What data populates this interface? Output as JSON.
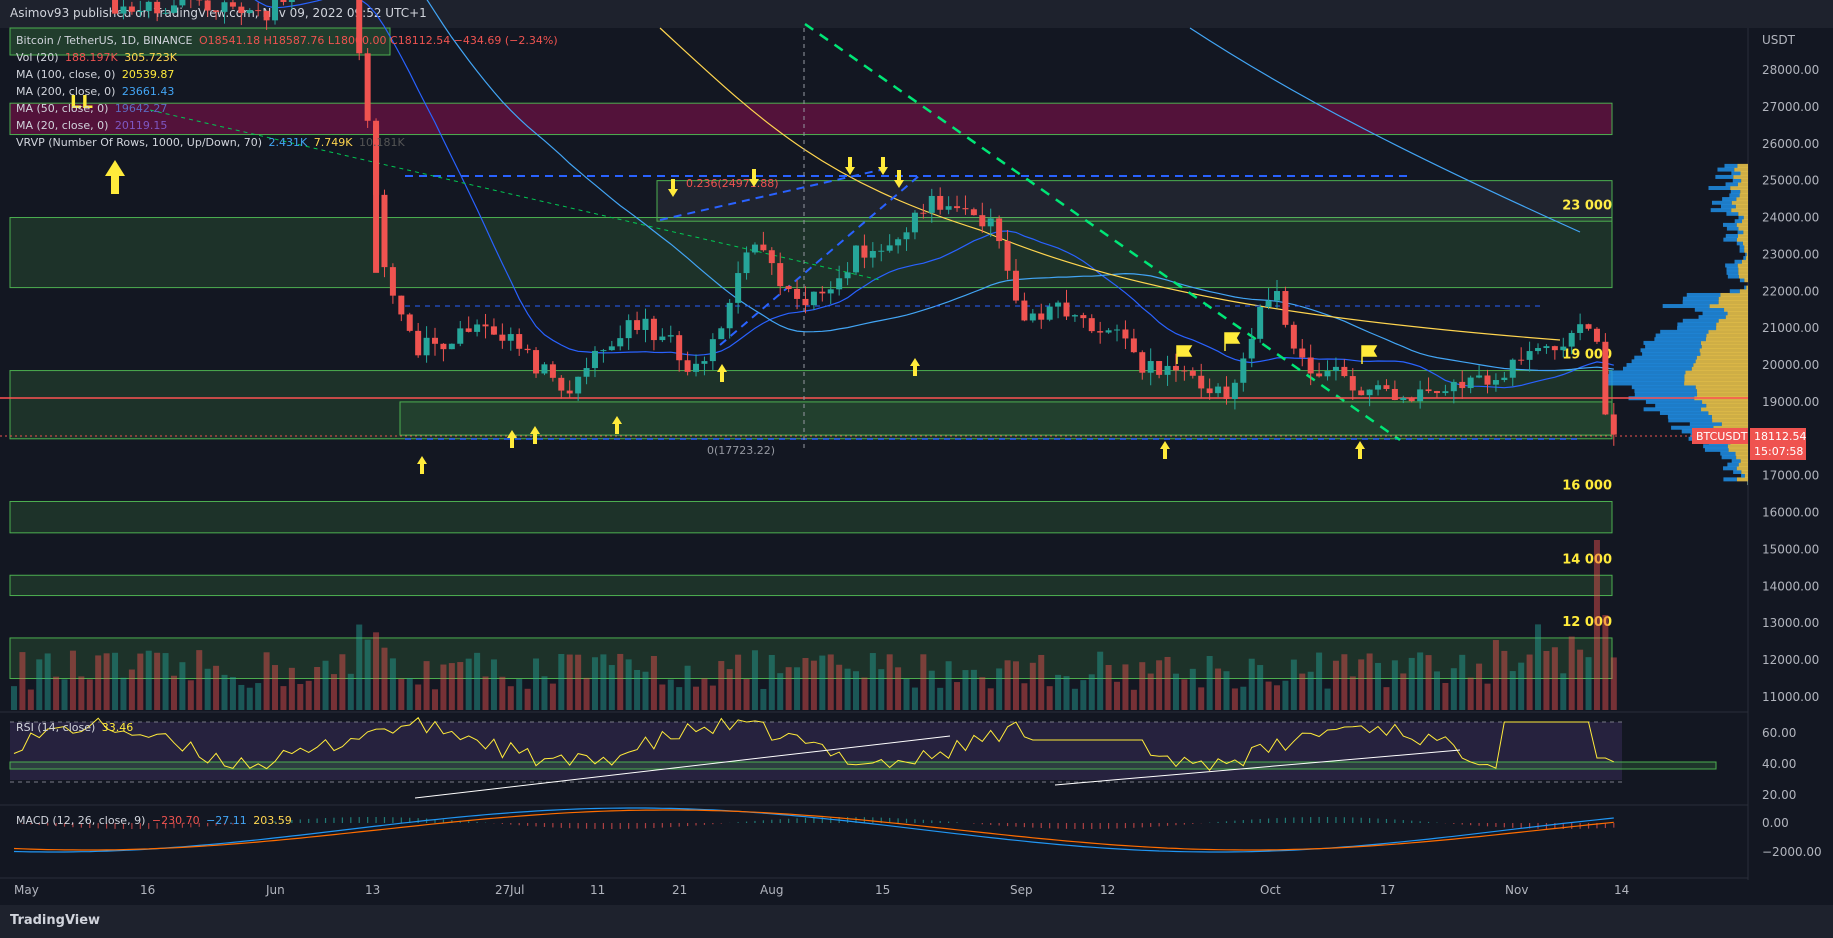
{
  "header": {
    "publisher": "Asimov93 published on TradingView.com, Nov 09, 2022 09:52 UTC+1"
  },
  "legend": {
    "symbol": "Bitcoin / TetherUS, 1D, BINANCE",
    "ohlc": "O18541.18 H18587.76 L18000.00 C18112.54 −434.69 (−2.34%)",
    "vol": {
      "label": "Vol (20)",
      "v1": "188.197K",
      "v2": "305.723K"
    },
    "ma100": {
      "label": "MA (100, close, 0)",
      "value": "20539.87"
    },
    "ma200": {
      "label": "MA (200, close, 0)",
      "value": "23661.43"
    },
    "ma50": {
      "label": "MA (50, close, 0)",
      "value": "19642.27"
    },
    "ma20": {
      "label": "MA (20, close, 0)",
      "value": "20119.15"
    },
    "vrvp": {
      "label": "VRVP (Number Of Rows, 1000, Up/Down, 70)",
      "v1": "2.431K",
      "v2": "7.749K",
      "v3": "10.181K"
    },
    "rsi": {
      "label": "RSI (14, close)",
      "value": "33.46"
    },
    "macd": {
      "label": "MACD (12, 26, close, 9)",
      "v1": "−230.70",
      "v2": "−27.11",
      "v3": "203.59"
    }
  },
  "price_axis": {
    "unit": "USDT",
    "ticks": [
      "28000.00",
      "27000.00",
      "26000.00",
      "25000.00",
      "24000.00",
      "23000.00",
      "22000.00",
      "21000.00",
      "20000.00",
      "19000.00",
      "17000.00",
      "16000.00",
      "15000.00",
      "14000.00",
      "13000.00",
      "12000.00",
      "11000.00"
    ],
    "last_label": "BTCUSDT",
    "last_price": "18112.54",
    "countdown": "15:07:58"
  },
  "rsi_axis": {
    "ticks": [
      "60.00",
      "40.00",
      "20.00"
    ]
  },
  "macd_axis": {
    "ticks": [
      "0.00",
      "−2000.00"
    ]
  },
  "time_axis": {
    "labels": [
      "May",
      "16",
      "Jun",
      "13",
      "27",
      "Jul",
      "11",
      "21",
      "Aug",
      "15",
      "Sep",
      "12",
      "Oct",
      "17",
      "Nov",
      "14"
    ]
  },
  "annotations": {
    "fib_236": "0.236(24971.88)",
    "fib_0": "0(17723.22)",
    "zone_23000": "23 000",
    "zone_19000": "19 000",
    "zone_16000": "16 000",
    "zone_14000": "14 000",
    "zone_12000": "12 000",
    "ll": "LL"
  },
  "colors": {
    "background": "#131722",
    "up": "#26a69a",
    "down": "#ef5350",
    "zone_green": "#4caf50",
    "zone_red": "#880e4f",
    "highlight": "#ffeb3b",
    "ma_blue": "#2962ff",
    "ma_yellow": "#ffd54f",
    "rsi_band": "#7e57c2"
  },
  "footer": {
    "brand": "TradingView"
  },
  "chart_data": {
    "type": "candlestick",
    "title": "Bitcoin / TetherUS, 1D, BINANCE",
    "ylabel": "USDT",
    "ylim": [
      10500,
      29000
    ],
    "log_scale": false,
    "grid": false,
    "x_start": "2022-05-01",
    "x_end": "2022-11-09",
    "last": {
      "open": 18541.18,
      "high": 18587.76,
      "low": 18000.0,
      "close": 18112.54,
      "change": -434.69,
      "change_pct": -2.34
    },
    "ma": {
      "ma20": 20119.15,
      "ma50": 19642.27,
      "ma100": 20539.87,
      "ma200": 23661.43
    },
    "support_resistance_zones": [
      {
        "label": "23 000",
        "low": 22100,
        "high": 24000
      },
      {
        "label": "19 000",
        "low": 18000,
        "high": 19850
      },
      {
        "label": "16 000",
        "low": 15450,
        "high": 16300
      },
      {
        "label": "14 000",
        "low": 13750,
        "high": 14300
      },
      {
        "label": "12 000",
        "low": 11500,
        "high": 12600
      }
    ],
    "fibonacci": [
      {
        "level": "0.236",
        "price": 24971.88
      },
      {
        "level": "0",
        "price": 17723.22
      }
    ],
    "rsi": {
      "value": 33.46,
      "bands": [
        30,
        70
      ]
    },
    "macd": {
      "macd": -230.7,
      "signal": -27.11,
      "histogram": 203.59
    }
  }
}
